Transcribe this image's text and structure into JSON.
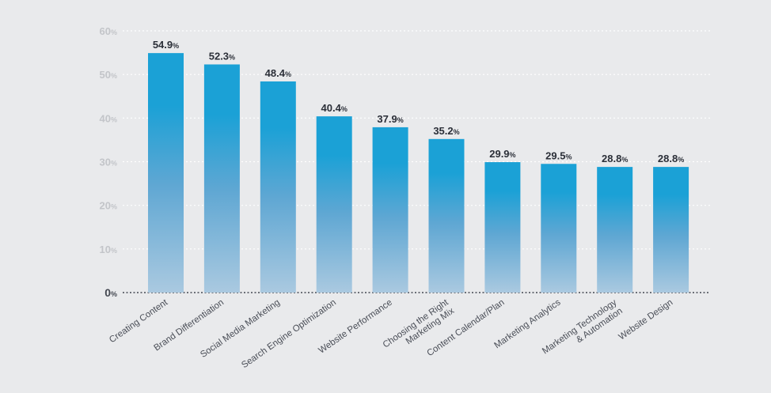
{
  "chart_data": {
    "type": "bar",
    "title": "",
    "xlabel": "",
    "ylabel": "",
    "ylim": [
      0,
      60
    ],
    "yticks": [
      0,
      10,
      20,
      30,
      40,
      50,
      60
    ],
    "ytick_suffix": "%",
    "grid": true,
    "categories": [
      "Creating Content",
      "Brand Differentiation",
      "Social Media Marketing",
      "Search Engine Optimization",
      "Website Performance",
      "Choosing the Right|Marketing Mix",
      "Content Calendar/Plan",
      "Marketing Analytics",
      "Marketing Technology|& Automation",
      "Website Design"
    ],
    "values": [
      54.9,
      52.3,
      48.4,
      40.4,
      37.9,
      35.2,
      29.9,
      29.5,
      28.8,
      28.8
    ],
    "value_labels": [
      "54.9",
      "52.3",
      "48.4",
      "40.4",
      "37.9",
      "35.2",
      "29.9",
      "29.5",
      "28.8",
      "28.8"
    ],
    "colors": {
      "background": "#e9eaec",
      "bar_top": "#1ba1d6",
      "bar_mid": "#5fa7d3",
      "bar_bottom": "#aac9e0",
      "grid": "#ffffff",
      "axis": "#444851"
    }
  }
}
